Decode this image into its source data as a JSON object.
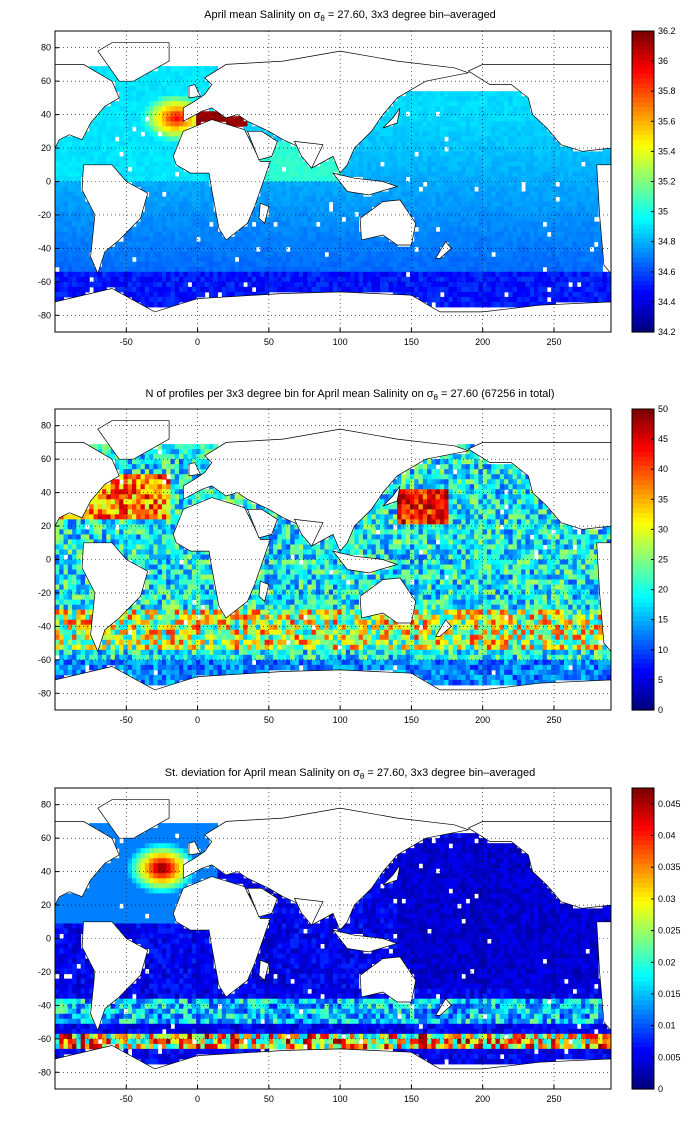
{
  "figure": {
    "panels": [
      {
        "title_parts": [
          "April mean Salinity on σ",
          "θ",
          " = 27.60, 3x3 degree bin–averaged"
        ],
        "colorbar_ticks": [
          "34.2",
          "34.4",
          "34.6",
          "34.8",
          "35",
          "35.2",
          "35.4",
          "35.6",
          "35.8",
          "36",
          "36.2"
        ]
      },
      {
        "title_parts": [
          "N of profiles per 3x3 degree bin for April mean Salinity on σ",
          "θ",
          " = 27.60 (67256 in total)"
        ],
        "colorbar_ticks": [
          "0",
          "5",
          "10",
          "15",
          "20",
          "25",
          "30",
          "35",
          "40",
          "45",
          "50"
        ]
      },
      {
        "title_parts": [
          "St. deviation for April mean Salinity on σ",
          "θ",
          " = 27.60, 3x3 degree bin–averaged"
        ],
        "colorbar_ticks": [
          "0",
          "0.005",
          "0.01",
          "0.015",
          "0.02",
          "0.025",
          "0.03",
          "0.035",
          "0.04",
          "0.045"
        ]
      }
    ]
  },
  "chart_data": [
    {
      "type": "heatmap",
      "title": "April mean Salinity on σθ = 27.60, 3x3 degree bin–averaged",
      "x_ticks": [
        -50,
        0,
        50,
        100,
        150,
        200,
        250
      ],
      "y_ticks": [
        80,
        60,
        40,
        20,
        0,
        -20,
        -40,
        -60,
        -80
      ],
      "xlim": [
        -100,
        290
      ],
      "ylim": [
        -90,
        90
      ],
      "grid": true,
      "colorbar": {
        "min": 34.2,
        "max": 36.2,
        "ticks": [
          34.2,
          34.4,
          34.6,
          34.8,
          35,
          35.2,
          35.4,
          35.6,
          35.8,
          36,
          36.2
        ]
      },
      "bin_size_deg": 3
    },
    {
      "type": "heatmap",
      "title": "N of profiles per 3x3 degree bin for April mean Salinity on σθ = 27.60 (67256 in total)",
      "x_ticks": [
        -50,
        0,
        50,
        100,
        150,
        200,
        250
      ],
      "y_ticks": [
        80,
        60,
        40,
        20,
        0,
        -20,
        -40,
        -60,
        -80
      ],
      "xlim": [
        -100,
        290
      ],
      "ylim": [
        -90,
        90
      ],
      "grid": true,
      "colorbar": {
        "min": 0,
        "max": 50,
        "ticks": [
          0,
          5,
          10,
          15,
          20,
          25,
          30,
          35,
          40,
          45,
          50
        ]
      },
      "total_profiles": 67256,
      "bin_size_deg": 3
    },
    {
      "type": "heatmap",
      "title": "St. deviation for April mean Salinity on σθ = 27.60, 3x3 degree bin–averaged",
      "x_ticks": [
        -50,
        0,
        50,
        100,
        150,
        200,
        250
      ],
      "y_ticks": [
        80,
        60,
        40,
        20,
        0,
        -20,
        -40,
        -60,
        -80
      ],
      "xlim": [
        -100,
        290
      ],
      "ylim": [
        -90,
        90
      ],
      "grid": true,
      "colorbar": {
        "min": 0,
        "max": 0.0475,
        "ticks": [
          0,
          0.005,
          0.01,
          0.015,
          0.02,
          0.025,
          0.03,
          0.035,
          0.04,
          0.045
        ]
      },
      "bin_size_deg": 3
    }
  ]
}
